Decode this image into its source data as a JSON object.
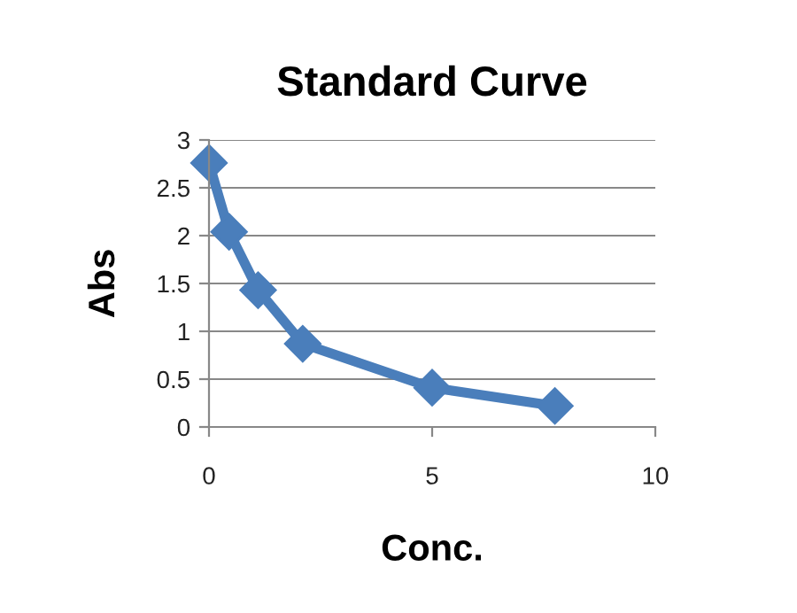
{
  "chart_data": {
    "type": "line",
    "title": "Standard Curve",
    "xlabel": "Conc.",
    "ylabel": "Abs",
    "x": [
      0,
      0.45,
      1.1,
      2.1,
      5,
      7.75
    ],
    "series": [
      {
        "color": "#4a7ebb",
        "values": [
          2.76,
          2.04,
          1.43,
          0.87,
          0.41,
          0.22
        ]
      }
    ],
    "xlim": [
      0,
      10
    ],
    "xticks": [
      0,
      5,
      10
    ],
    "ylim": [
      0,
      3
    ],
    "yticks": [
      0,
      0.5,
      1,
      1.5,
      2,
      2.5,
      3
    ],
    "grid": "y",
    "marker": "diamond",
    "line_style": "solid",
    "legend": false
  }
}
